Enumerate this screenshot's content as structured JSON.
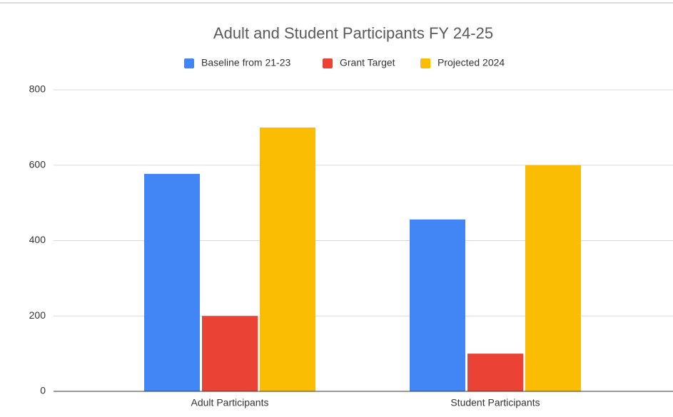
{
  "chart_data": {
    "type": "bar",
    "title": "Adult and Student Participants FY 24-25",
    "categories": [
      "Adult Participants",
      "Student Participants"
    ],
    "series": [
      {
        "name": "Baseline from 21-23",
        "color": "#4285f4",
        "values": [
          577,
          456
        ]
      },
      {
        "name": "Grant Target",
        "color": "#ea4335",
        "values": [
          200,
          100
        ]
      },
      {
        "name": "Projected 2024",
        "color": "#fbbc04",
        "values": [
          700,
          600
        ]
      }
    ],
    "ylim": [
      0,
      800
    ],
    "yticks": [
      0,
      200,
      400,
      600,
      800
    ],
    "grid": true,
    "legend": "top"
  }
}
